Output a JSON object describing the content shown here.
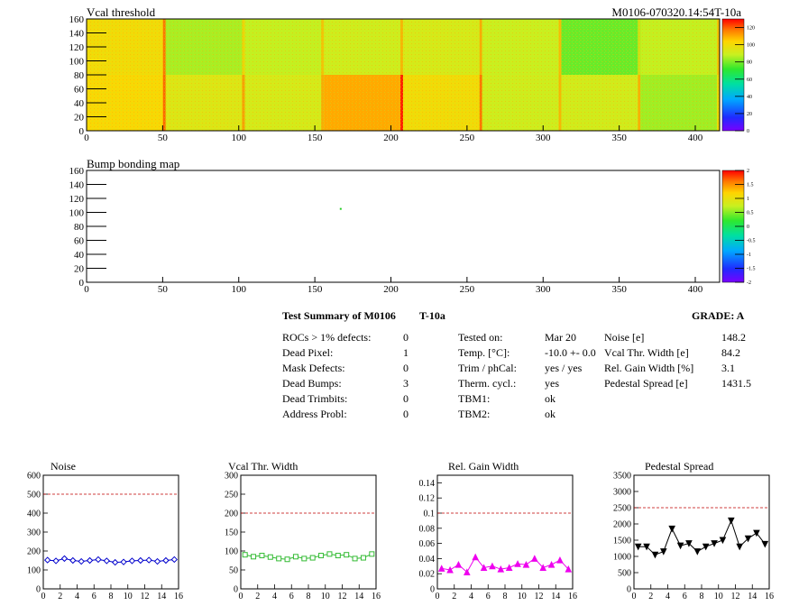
{
  "top_map": {
    "title": "Vcal threshold",
    "right_title": "M0106-070320.14:54T-10a",
    "xticks": [
      0,
      50,
      100,
      150,
      200,
      250,
      300,
      350,
      400
    ],
    "yticks": [
      0,
      20,
      40,
      60,
      80,
      100,
      120,
      140,
      160
    ],
    "zticks": [
      0,
      20,
      40,
      60,
      80,
      100,
      120
    ],
    "xlim": [
      0,
      416
    ],
    "ylim": [
      0,
      160
    ],
    "zlim": [
      0,
      130
    ],
    "roc_blocks": [
      {
        "row": 1,
        "col": 0,
        "level": 100
      },
      {
        "row": 1,
        "col": 1,
        "level": 85
      },
      {
        "row": 1,
        "col": 2,
        "level": 88
      },
      {
        "row": 1,
        "col": 3,
        "level": 90
      },
      {
        "row": 1,
        "col": 4,
        "level": 92
      },
      {
        "row": 1,
        "col": 5,
        "level": 89
      },
      {
        "row": 1,
        "col": 6,
        "level": 78
      },
      {
        "row": 1,
        "col": 7,
        "level": 88
      },
      {
        "row": 0,
        "col": 0,
        "level": 102
      },
      {
        "row": 0,
        "col": 1,
        "level": 94
      },
      {
        "row": 0,
        "col": 2,
        "level": 92
      },
      {
        "row": 0,
        "col": 3,
        "level": 110
      },
      {
        "row": 0,
        "col": 4,
        "level": 100
      },
      {
        "row": 0,
        "col": 5,
        "level": 90
      },
      {
        "row": 0,
        "col": 6,
        "level": 91
      },
      {
        "row": 0,
        "col": 7,
        "level": 84
      }
    ]
  },
  "bump_map": {
    "title": "Bump bonding map",
    "xticks": [
      0,
      50,
      100,
      150,
      200,
      250,
      300,
      350,
      400
    ],
    "yticks": [
      0,
      20,
      40,
      60,
      80,
      100,
      120,
      140,
      160
    ],
    "zticks": [
      "2",
      "1.5",
      "1",
      "0.5",
      "0",
      "-0.5",
      "-1",
      "-1.5",
      "-2"
    ],
    "xlim": [
      0,
      416
    ],
    "ylim": [
      0,
      160
    ],
    "dead_point": {
      "x": 167,
      "y": 105
    }
  },
  "summary": {
    "title": "Test Summary of M0106",
    "test_name": "T-10a",
    "grade": "GRADE:  A",
    "left": [
      {
        "label": "ROCs > 1% defects:",
        "value": "0"
      },
      {
        "label": "Dead Pixel:",
        "value": "1"
      },
      {
        "label": "Mask Defects:",
        "value": "0"
      },
      {
        "label": "Dead Bumps:",
        "value": "3"
      },
      {
        "label": "Dead Trimbits:",
        "value": "0"
      },
      {
        "label": "Address Probl:",
        "value": "0"
      }
    ],
    "middle": [
      {
        "label": "Tested on:",
        "value": "Mar 20"
      },
      {
        "label": "Temp. [°C]:",
        "value": "-10.0 +- 0.0"
      },
      {
        "label": "Trim / phCal:",
        "value": "yes / yes"
      },
      {
        "label": "Therm. cycl.:",
        "value": "yes"
      },
      {
        "label": "TBM1:",
        "value": "ok"
      },
      {
        "label": "TBM2:",
        "value": "ok"
      }
    ],
    "right": [
      {
        "label": "Noise [e]",
        "value": "148.2"
      },
      {
        "label": "Vcal Thr. Width [e]",
        "value": "84.2"
      },
      {
        "label": "Rel. Gain Width [%]",
        "value": "3.1"
      },
      {
        "label": "Pedestal Spread [e]",
        "value": "1431.5"
      }
    ]
  },
  "chart_data": [
    {
      "type": "line",
      "title": "Noise",
      "color": "#0000cc",
      "marker": "diamond",
      "x": [
        0,
        1,
        2,
        3,
        4,
        5,
        6,
        7,
        8,
        9,
        10,
        11,
        12,
        13,
        14,
        15
      ],
      "values": [
        152,
        148,
        160,
        150,
        145,
        150,
        155,
        148,
        140,
        142,
        148,
        150,
        152,
        145,
        150,
        155
      ],
      "ylim": [
        0,
        600
      ],
      "xlim": [
        0,
        16
      ],
      "yticks": [
        0,
        100,
        200,
        300,
        400,
        500,
        600
      ],
      "ythreshold": 500
    },
    {
      "type": "line",
      "title": "Vcal Thr. Width",
      "color": "#33bb33",
      "marker": "square",
      "x": [
        0,
        1,
        2,
        3,
        4,
        5,
        6,
        7,
        8,
        9,
        10,
        11,
        12,
        13,
        14,
        15
      ],
      "values": [
        90,
        85,
        88,
        84,
        80,
        78,
        85,
        80,
        82,
        88,
        92,
        88,
        90,
        80,
        82,
        92
      ],
      "ylim": [
        0,
        300
      ],
      "xlim": [
        0,
        16
      ],
      "yticks": [
        0,
        50,
        100,
        150,
        200,
        250,
        300
      ],
      "ythreshold": 200
    },
    {
      "type": "line",
      "title": "Rel. Gain Width",
      "color": "#ee00ee",
      "marker": "triangle",
      "x": [
        0,
        1,
        2,
        3,
        4,
        5,
        6,
        7,
        8,
        9,
        10,
        11,
        12,
        13,
        14,
        15
      ],
      "values": [
        0.027,
        0.025,
        0.032,
        0.022,
        0.042,
        0.028,
        0.03,
        0.026,
        0.028,
        0.033,
        0.032,
        0.04,
        0.028,
        0.032,
        0.038,
        0.026
      ],
      "ylim": [
        0,
        0.15
      ],
      "xlim": [
        0,
        16
      ],
      "yticks": [
        0,
        0.02,
        0.04,
        0.06,
        0.08,
        0.1,
        0.12,
        0.14
      ],
      "ythreshold": 0.1
    },
    {
      "type": "line",
      "title": "Pedestal Spread",
      "color": "#000000",
      "marker": "triangle-down",
      "x": [
        0,
        1,
        2,
        3,
        4,
        5,
        6,
        7,
        8,
        9,
        10,
        11,
        12,
        13,
        14,
        15
      ],
      "values": [
        1300,
        1300,
        1050,
        1150,
        1850,
        1330,
        1400,
        1150,
        1300,
        1400,
        1500,
        2100,
        1300,
        1550,
        1720,
        1380
      ],
      "ylim": [
        0,
        3500
      ],
      "xlim": [
        0,
        16
      ],
      "yticks": [
        0,
        500,
        1000,
        1500,
        2000,
        2500,
        3000,
        3500
      ],
      "ythreshold": 2500
    }
  ]
}
